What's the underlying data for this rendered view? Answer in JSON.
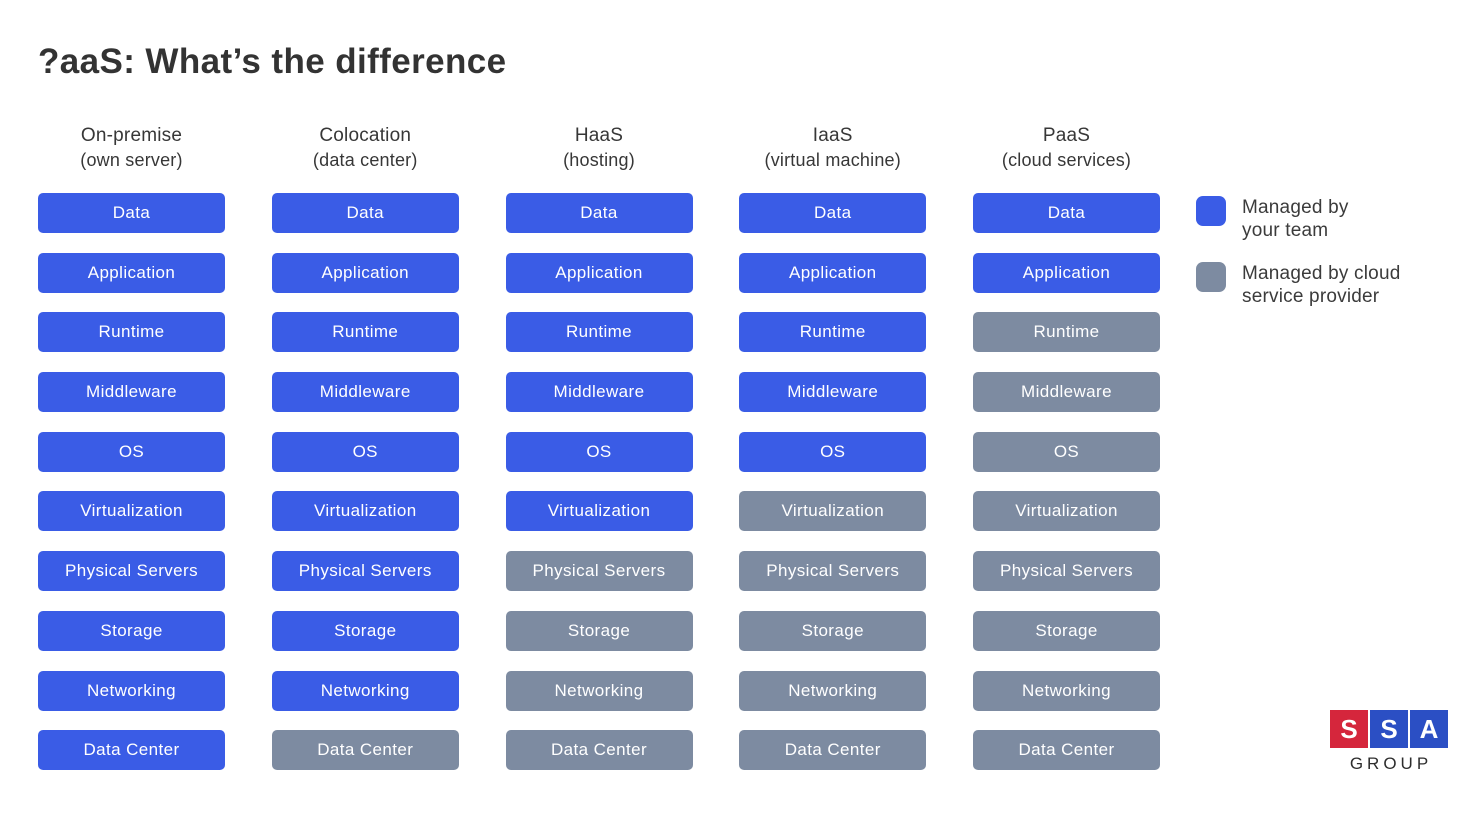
{
  "title": "?aaS: What’s the difference",
  "colors": {
    "team": "#3a5ce6",
    "provider": "#7d8ba1"
  },
  "columns": [
    {
      "name": "On-premise",
      "subtitle": "(own server)",
      "layers": [
        {
          "label": "Data",
          "managed": "team"
        },
        {
          "label": "Application",
          "managed": "team"
        },
        {
          "label": "Runtime",
          "managed": "team"
        },
        {
          "label": "Middleware",
          "managed": "team"
        },
        {
          "label": "OS",
          "managed": "team"
        },
        {
          "label": "Virtualization",
          "managed": "team"
        },
        {
          "label": "Physical Servers",
          "managed": "team"
        },
        {
          "label": "Storage",
          "managed": "team"
        },
        {
          "label": "Networking",
          "managed": "team"
        },
        {
          "label": "Data Center",
          "managed": "team"
        }
      ]
    },
    {
      "name": "Colocation",
      "subtitle": "(data center)",
      "layers": [
        {
          "label": "Data",
          "managed": "team"
        },
        {
          "label": "Application",
          "managed": "team"
        },
        {
          "label": "Runtime",
          "managed": "team"
        },
        {
          "label": "Middleware",
          "managed": "team"
        },
        {
          "label": "OS",
          "managed": "team"
        },
        {
          "label": "Virtualization",
          "managed": "team"
        },
        {
          "label": "Physical Servers",
          "managed": "team"
        },
        {
          "label": "Storage",
          "managed": "team"
        },
        {
          "label": "Networking",
          "managed": "team"
        },
        {
          "label": "Data Center",
          "managed": "provider"
        }
      ]
    },
    {
      "name": "HaaS",
      "subtitle": "(hosting)",
      "layers": [
        {
          "label": "Data",
          "managed": "team"
        },
        {
          "label": "Application",
          "managed": "team"
        },
        {
          "label": "Runtime",
          "managed": "team"
        },
        {
          "label": "Middleware",
          "managed": "team"
        },
        {
          "label": "OS",
          "managed": "team"
        },
        {
          "label": "Virtualization",
          "managed": "team"
        },
        {
          "label": "Physical Servers",
          "managed": "provider"
        },
        {
          "label": "Storage",
          "managed": "provider"
        },
        {
          "label": "Networking",
          "managed": "provider"
        },
        {
          "label": "Data Center",
          "managed": "provider"
        }
      ]
    },
    {
      "name": "IaaS",
      "subtitle": "(virtual machine)",
      "layers": [
        {
          "label": "Data",
          "managed": "team"
        },
        {
          "label": "Application",
          "managed": "team"
        },
        {
          "label": "Runtime",
          "managed": "team"
        },
        {
          "label": "Middleware",
          "managed": "team"
        },
        {
          "label": "OS",
          "managed": "team"
        },
        {
          "label": "Virtualization",
          "managed": "provider"
        },
        {
          "label": "Physical Servers",
          "managed": "provider"
        },
        {
          "label": "Storage",
          "managed": "provider"
        },
        {
          "label": "Networking",
          "managed": "provider"
        },
        {
          "label": "Data Center",
          "managed": "provider"
        }
      ]
    },
    {
      "name": "PaaS",
      "subtitle": "(cloud services)",
      "layers": [
        {
          "label": "Data",
          "managed": "team"
        },
        {
          "label": "Application",
          "managed": "team"
        },
        {
          "label": "Runtime",
          "managed": "provider"
        },
        {
          "label": "Middleware",
          "managed": "provider"
        },
        {
          "label": "OS",
          "managed": "provider"
        },
        {
          "label": "Virtualization",
          "managed": "provider"
        },
        {
          "label": "Physical Servers",
          "managed": "provider"
        },
        {
          "label": "Storage",
          "managed": "provider"
        },
        {
          "label": "Networking",
          "managed": "provider"
        },
        {
          "label": "Data Center",
          "managed": "provider"
        }
      ]
    }
  ],
  "legend": {
    "team": {
      "line1": "Managed by",
      "line2": "your team"
    },
    "provider": {
      "line1": "Managed by cloud",
      "line2": "service provider"
    }
  },
  "logo": {
    "squares": [
      {
        "letter": "S",
        "color": "#d5263c"
      },
      {
        "letter": "S",
        "color": "#2b4fc4"
      },
      {
        "letter": "A",
        "color": "#2b4fc4"
      }
    ],
    "caption": "GROUP"
  }
}
